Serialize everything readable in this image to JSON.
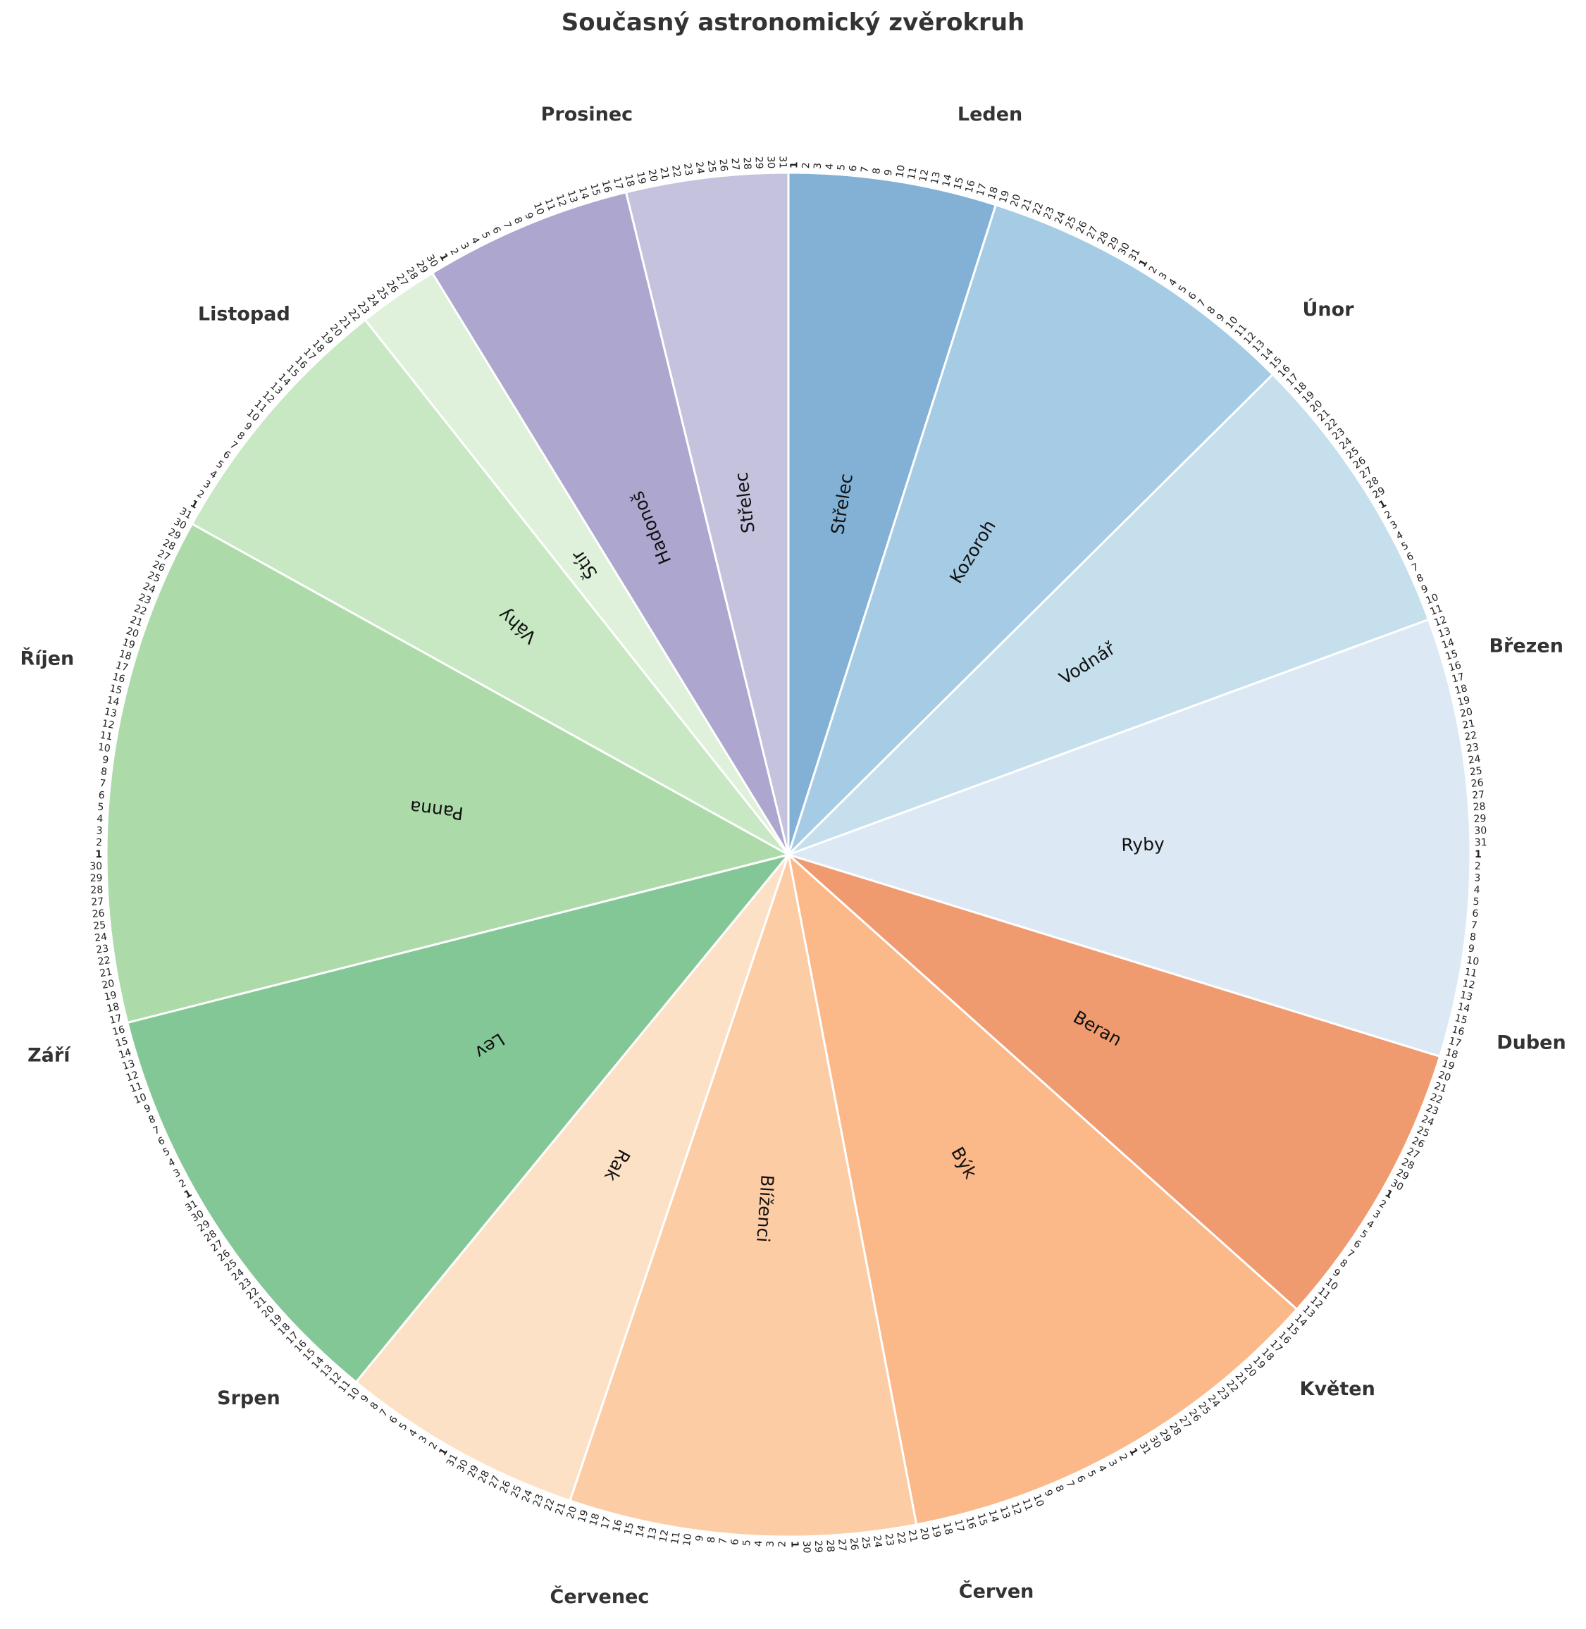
{
  "chart_data": {
    "type": "pie",
    "title": "Současný astronomický zvěrokruh",
    "start": "top",
    "direction": "clockwise",
    "months": [
      {
        "name": "Leden",
        "days": 31
      },
      {
        "name": "Únor",
        "days": 29
      },
      {
        "name": "Březen",
        "days": 31
      },
      {
        "name": "Duben",
        "days": 30
      },
      {
        "name": "Květen",
        "days": 31
      },
      {
        "name": "Červen",
        "days": 30
      },
      {
        "name": "Červenec",
        "days": 31
      },
      {
        "name": "Srpen",
        "days": 31
      },
      {
        "name": "Září",
        "days": 30
      },
      {
        "name": "Říjen",
        "days": 31
      },
      {
        "name": "Listopad",
        "days": 30
      },
      {
        "name": "Prosinec",
        "days": 31
      }
    ],
    "signs": [
      {
        "name": "Střelec",
        "start": "1 Leden",
        "end": "18 Leden",
        "days": 18,
        "color": "#82b1d5"
      },
      {
        "name": "Kozoroh",
        "start": "19 Leden",
        "end": "15 Únor",
        "days": 28,
        "color": "#a6cce5"
      },
      {
        "name": "Vodnář",
        "start": "16 Únor",
        "end": "11 Březen",
        "days": 25,
        "color": "#c6dfec"
      },
      {
        "name": "Ryby",
        "start": "12 Březen",
        "end": "18 Duben",
        "days": 38,
        "color": "#dce9f5"
      },
      {
        "name": "Beran",
        "start": "19 Duben",
        "end": "13 Květen",
        "days": 25,
        "color": "#ef9a6f"
      },
      {
        "name": "Býk",
        "start": "14 Květen",
        "end": "20 Červen",
        "days": 38,
        "color": "#fbb98a"
      },
      {
        "name": "Blíženci",
        "start": "21 Červen",
        "end": "20 Červenec",
        "days": 30,
        "color": "#fccca5"
      },
      {
        "name": "Rak",
        "start": "21 Červenec",
        "end": "10 Srpen",
        "days": 21,
        "color": "#fde1c6"
      },
      {
        "name": "Lev",
        "start": "11 Srpen",
        "end": "16 Září",
        "days": 37,
        "color": "#84c797"
      },
      {
        "name": "Panna",
        "start": "17 Září",
        "end": "30 Říjen",
        "days": 44,
        "color": "#acdaa9"
      },
      {
        "name": "Váhy",
        "start": "31 Říjen",
        "end": "22 Listopad",
        "days": 23,
        "color": "#c8e7c3"
      },
      {
        "name": "Štír",
        "start": "23 Listopad",
        "end": "29 Listopad",
        "days": 7,
        "color": "#dff1da"
      },
      {
        "name": "Hadonoš",
        "start": "30 Listopad",
        "end": "17 Prosinec",
        "days": 18,
        "color": "#ada6cf"
      },
      {
        "name": "Střelec",
        "start": "18 Prosinec",
        "end": "31 Prosinec",
        "days": 14,
        "color": "#c4c2dd"
      }
    ]
  }
}
